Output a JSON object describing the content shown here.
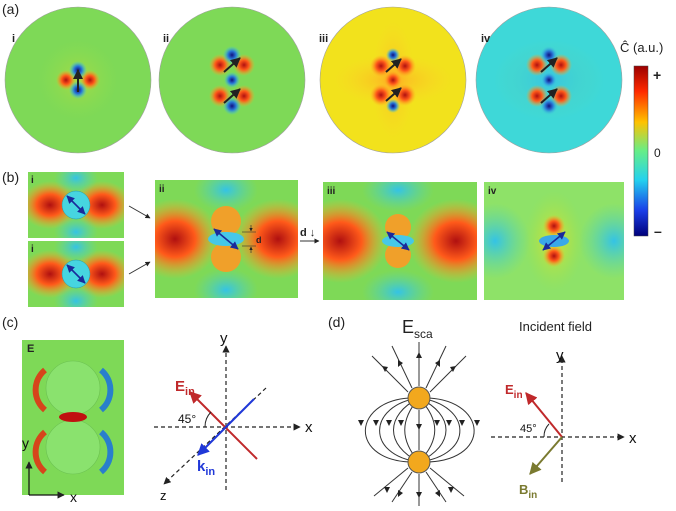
{
  "panel_labels": {
    "a": "(a)",
    "b": "(b)",
    "c": "(c)",
    "d": "(d)"
  },
  "a_sublabels": [
    "i",
    "ii",
    "iii",
    "iv"
  ],
  "b_sublabels": {
    "i_top": "i",
    "i_bottom": "i",
    "ii": "ii",
    "iii": "iii",
    "iv": "iv"
  },
  "colorbar": {
    "title": "Ĉ (a.u.)",
    "plus": "+",
    "zero": "0",
    "minus": "–"
  },
  "b_annotations": {
    "gap": "d",
    "shift": "d ↓"
  },
  "c_annotations": {
    "field": "E",
    "axis_y": "y",
    "axis_x": "x"
  },
  "c_axes": {
    "y": "y",
    "x": "x",
    "z": "z",
    "e_in": "E",
    "e_in_sub": "in",
    "k_in": "k",
    "k_in_sub": "in",
    "angle": "45°"
  },
  "d_titles": {
    "esca": "E",
    "esca_sub": "sca",
    "incident": "Incident field"
  },
  "d_axes": {
    "y": "y",
    "x": "x",
    "e_in": "E",
    "e_in_sub": "in",
    "b_in": "B",
    "b_in_sub": "in",
    "angle": "45°"
  },
  "colors": {
    "field_bg": "#7ed957",
    "red": "#d62020",
    "blue": "#1535d0",
    "cyan": "#46d5e0",
    "yellow": "#f5e51c",
    "sphere": "#f2a81d",
    "e_arrow": "#c0292b",
    "k_arrow": "#2038d8",
    "b_arrow": "#7a7a30"
  }
}
